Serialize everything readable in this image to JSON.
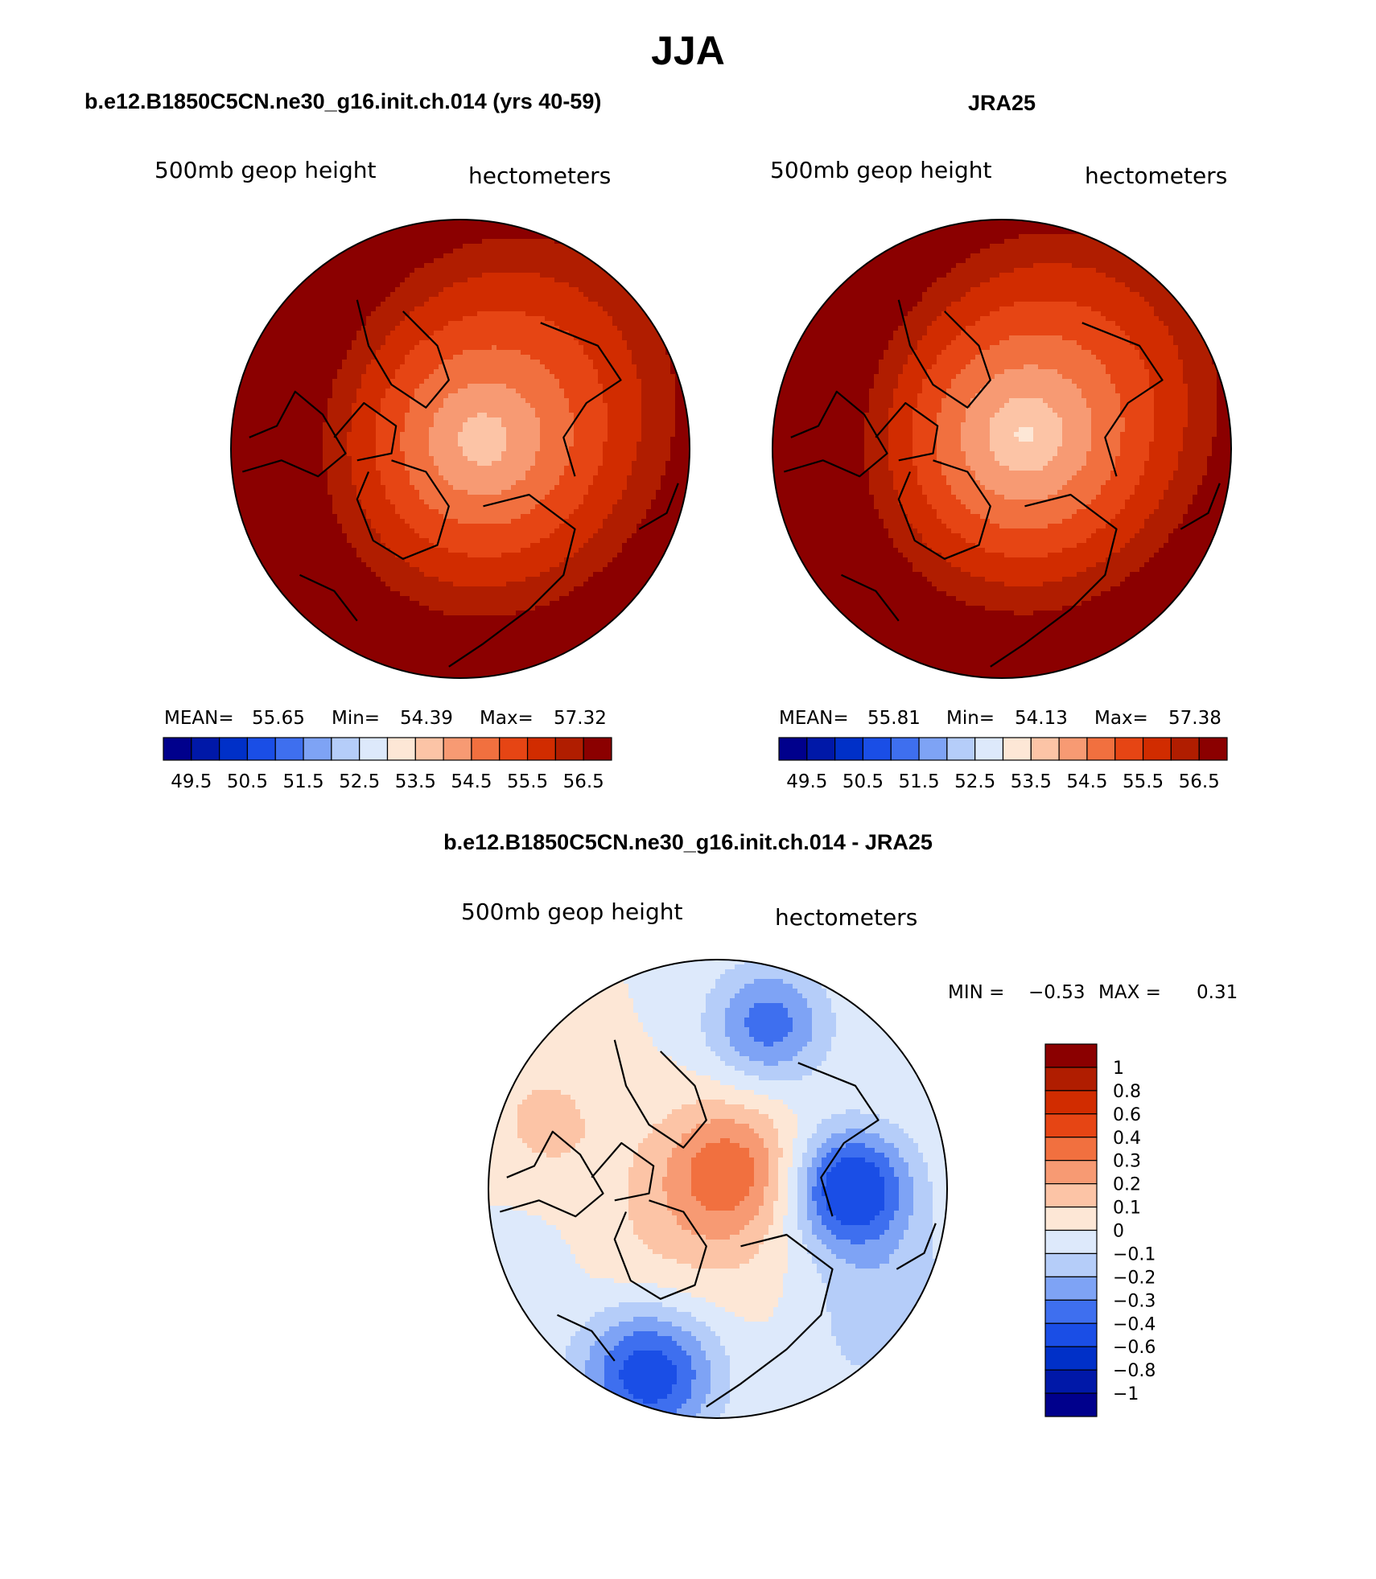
{
  "page_title": "JJA",
  "chart_data": [
    {
      "type": "heatmap",
      "panel": "model",
      "title": "b.e12.B1850C5CN.ne30_g16.init.ch.014 (yrs 40-59)",
      "variable": "500mb geop height",
      "units": "hectometers",
      "projection": "north polar stereographic",
      "stats": {
        "mean_label": "MEAN=",
        "mean": "55.65",
        "min_label": "Min=",
        "min": "54.39",
        "max_label": "Max=",
        "max": "57.32"
      },
      "field": {
        "pole_value": 53.6,
        "pole_offset": [
          0.1,
          -0.04
        ],
        "gradient": 3.7,
        "asymmetry": [
          {
            "k": 1,
            "amp": 0.35,
            "phase": 2.6
          },
          {
            "k": 2,
            "amp": 0.22,
            "phase": 0.9
          }
        ]
      },
      "colorbar": {
        "orientation": "horizontal",
        "levels": [
          49.5,
          50,
          50.5,
          51,
          51.5,
          52,
          52.5,
          53,
          53.5,
          54,
          54.5,
          55,
          55.5,
          56,
          56.5
        ],
        "tick_labels": [
          "49.5",
          "50.5",
          "51.5",
          "52.5",
          "53.5",
          "54.5",
          "55.5",
          "56.5"
        ],
        "colors": [
          "#00008c",
          "#0018a8",
          "#0030c8",
          "#1a4ee6",
          "#3e6fef",
          "#7ea3f5",
          "#b5cdf9",
          "#dde9fb",
          "#fde7d6",
          "#fcc4a6",
          "#f79a73",
          "#f1703f",
          "#e64514",
          "#d12c00",
          "#b01d00",
          "#8b0000"
        ]
      }
    },
    {
      "type": "heatmap",
      "panel": "obs",
      "title": "JRA25",
      "variable": "500mb geop height",
      "units": "hectometers",
      "projection": "north polar stereographic",
      "stats": {
        "mean_label": "MEAN=",
        "mean": "55.81",
        "min_label": "Min=",
        "min": "54.13",
        "max_label": "Max=",
        "max": "57.38"
      },
      "field": {
        "pole_value": 53.35,
        "pole_offset": [
          0.1,
          -0.06
        ],
        "gradient": 4.0,
        "asymmetry": [
          {
            "k": 1,
            "amp": 0.35,
            "phase": 2.6
          },
          {
            "k": 2,
            "amp": 0.22,
            "phase": 0.9
          }
        ]
      },
      "colorbar": {
        "orientation": "horizontal",
        "levels": [
          49.5,
          50,
          50.5,
          51,
          51.5,
          52,
          52.5,
          53,
          53.5,
          54,
          54.5,
          55,
          55.5,
          56,
          56.5
        ],
        "tick_labels": [
          "49.5",
          "50.5",
          "51.5",
          "52.5",
          "53.5",
          "54.5",
          "55.5",
          "56.5"
        ],
        "colors": [
          "#00008c",
          "#0018a8",
          "#0030c8",
          "#1a4ee6",
          "#3e6fef",
          "#7ea3f5",
          "#b5cdf9",
          "#dde9fb",
          "#fde7d6",
          "#fcc4a6",
          "#f79a73",
          "#f1703f",
          "#e64514",
          "#d12c00",
          "#b01d00",
          "#8b0000"
        ]
      }
    },
    {
      "type": "heatmap",
      "panel": "diff",
      "title": "b.e12.B1850C5CN.ne30_g16.init.ch.014 - JRA25",
      "variable": "500mb geop height",
      "units": "hectometers",
      "projection": "north polar stereographic",
      "stats": {
        "min_label": "MIN =",
        "min": "−0.53",
        "max_label": "MAX =",
        "max": "0.31"
      },
      "blobs": [
        {
          "x": 0.05,
          "y": -0.08,
          "amp": 0.35,
          "r": 0.3
        },
        {
          "x": 0.58,
          "y": 0.0,
          "amp": -0.55,
          "r": 0.26
        },
        {
          "x": -0.3,
          "y": 0.8,
          "amp": -0.5,
          "r": 0.3
        },
        {
          "x": 0.22,
          "y": -0.72,
          "amp": -0.35,
          "r": 0.26
        },
        {
          "x": -0.75,
          "y": -0.3,
          "amp": 0.12,
          "r": 0.3
        },
        {
          "x": -0.2,
          "y": 0.3,
          "amp": 0.1,
          "r": 0.45
        },
        {
          "x": 0.75,
          "y": 0.55,
          "amp": -0.18,
          "r": 0.35
        },
        {
          "x": -0.85,
          "y": 0.35,
          "amp": -0.08,
          "r": 0.25
        }
      ],
      "colorbar": {
        "orientation": "vertical",
        "levels": [
          -1,
          -0.8,
          -0.6,
          -0.4,
          -0.3,
          -0.2,
          -0.1,
          0,
          0.1,
          0.2,
          0.3,
          0.4,
          0.6,
          0.8,
          1
        ],
        "tick_labels": [
          "−1",
          "−0.8",
          "−0.6",
          "−0.4",
          "−0.3",
          "−0.2",
          "−0.1",
          "0",
          "0.1",
          "0.2",
          "0.3",
          "0.4",
          "0.6",
          "0.8",
          "1"
        ],
        "colors": [
          "#00008c",
          "#0018a8",
          "#0030c8",
          "#1a4ee6",
          "#3e6fef",
          "#7ea3f5",
          "#b5cdf9",
          "#dde9fb",
          "#fde7d6",
          "#fcc4a6",
          "#f79a73",
          "#f1703f",
          "#e64514",
          "#d12c00",
          "#b01d00",
          "#8b0000"
        ]
      }
    }
  ]
}
